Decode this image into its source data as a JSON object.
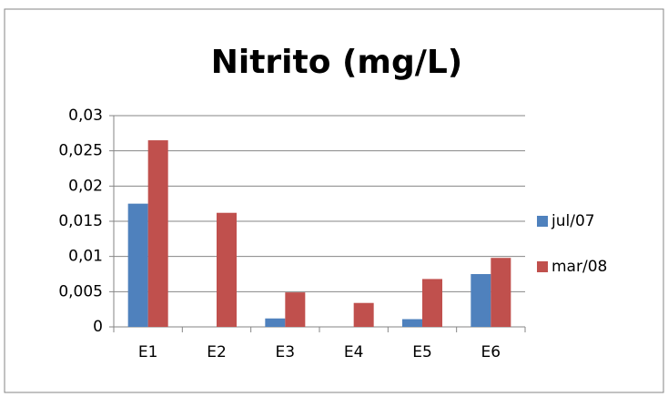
{
  "chart_data": {
    "type": "bar",
    "title": "Nitrito (mg/L)",
    "categories": [
      "E1",
      "E2",
      "E3",
      "E4",
      "E5",
      "E6"
    ],
    "series": [
      {
        "name": "jul/07",
        "color": "#4f81bd",
        "values": [
          0.0175,
          0,
          0.0012,
          0,
          0.0011,
          0.0075
        ]
      },
      {
        "name": "mar/08",
        "color": "#c0504d",
        "values": [
          0.0265,
          0.0162,
          0.0049,
          0.0034,
          0.0068,
          0.0098
        ]
      }
    ],
    "ylim": [
      0,
      0.03
    ],
    "yticks": [
      0,
      {
        "value": 0.005,
        "label": "0,005"
      },
      {
        "value": 0.01,
        "label": "0,01"
      },
      {
        "value": 0.015,
        "label": "0,015"
      },
      {
        "value": 0.02,
        "label": "0,02"
      },
      {
        "value": 0.025,
        "label": "0,025"
      },
      {
        "value": 0.03,
        "label": "0,03"
      }
    ],
    "grid": true,
    "legend": "right"
  }
}
